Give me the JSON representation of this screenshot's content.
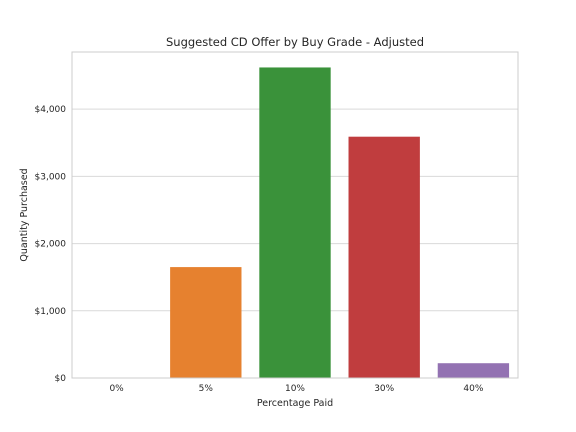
{
  "chart_data": {
    "type": "bar",
    "title": "Suggested CD Offer by Buy Grade - Adjusted",
    "xlabel": "Percentage Paid",
    "ylabel": "Quantity Purchased",
    "categories": [
      "0%",
      "5%",
      "10%",
      "30%",
      "40%"
    ],
    "values": [
      0,
      1650,
      4620,
      3590,
      220
    ],
    "colors": [
      "#1f77b4",
      "#e6812f",
      "#3a923a",
      "#c03d3e",
      "#9372b2"
    ],
    "ylim": [
      0,
      4850
    ],
    "yticks": [
      0,
      1000,
      2000,
      3000,
      4000
    ],
    "ytick_labels": [
      "$0",
      "$1,000",
      "$2,000",
      "$3,000",
      "$4,000"
    ],
    "grid": "horizontal",
    "legend": "none"
  }
}
